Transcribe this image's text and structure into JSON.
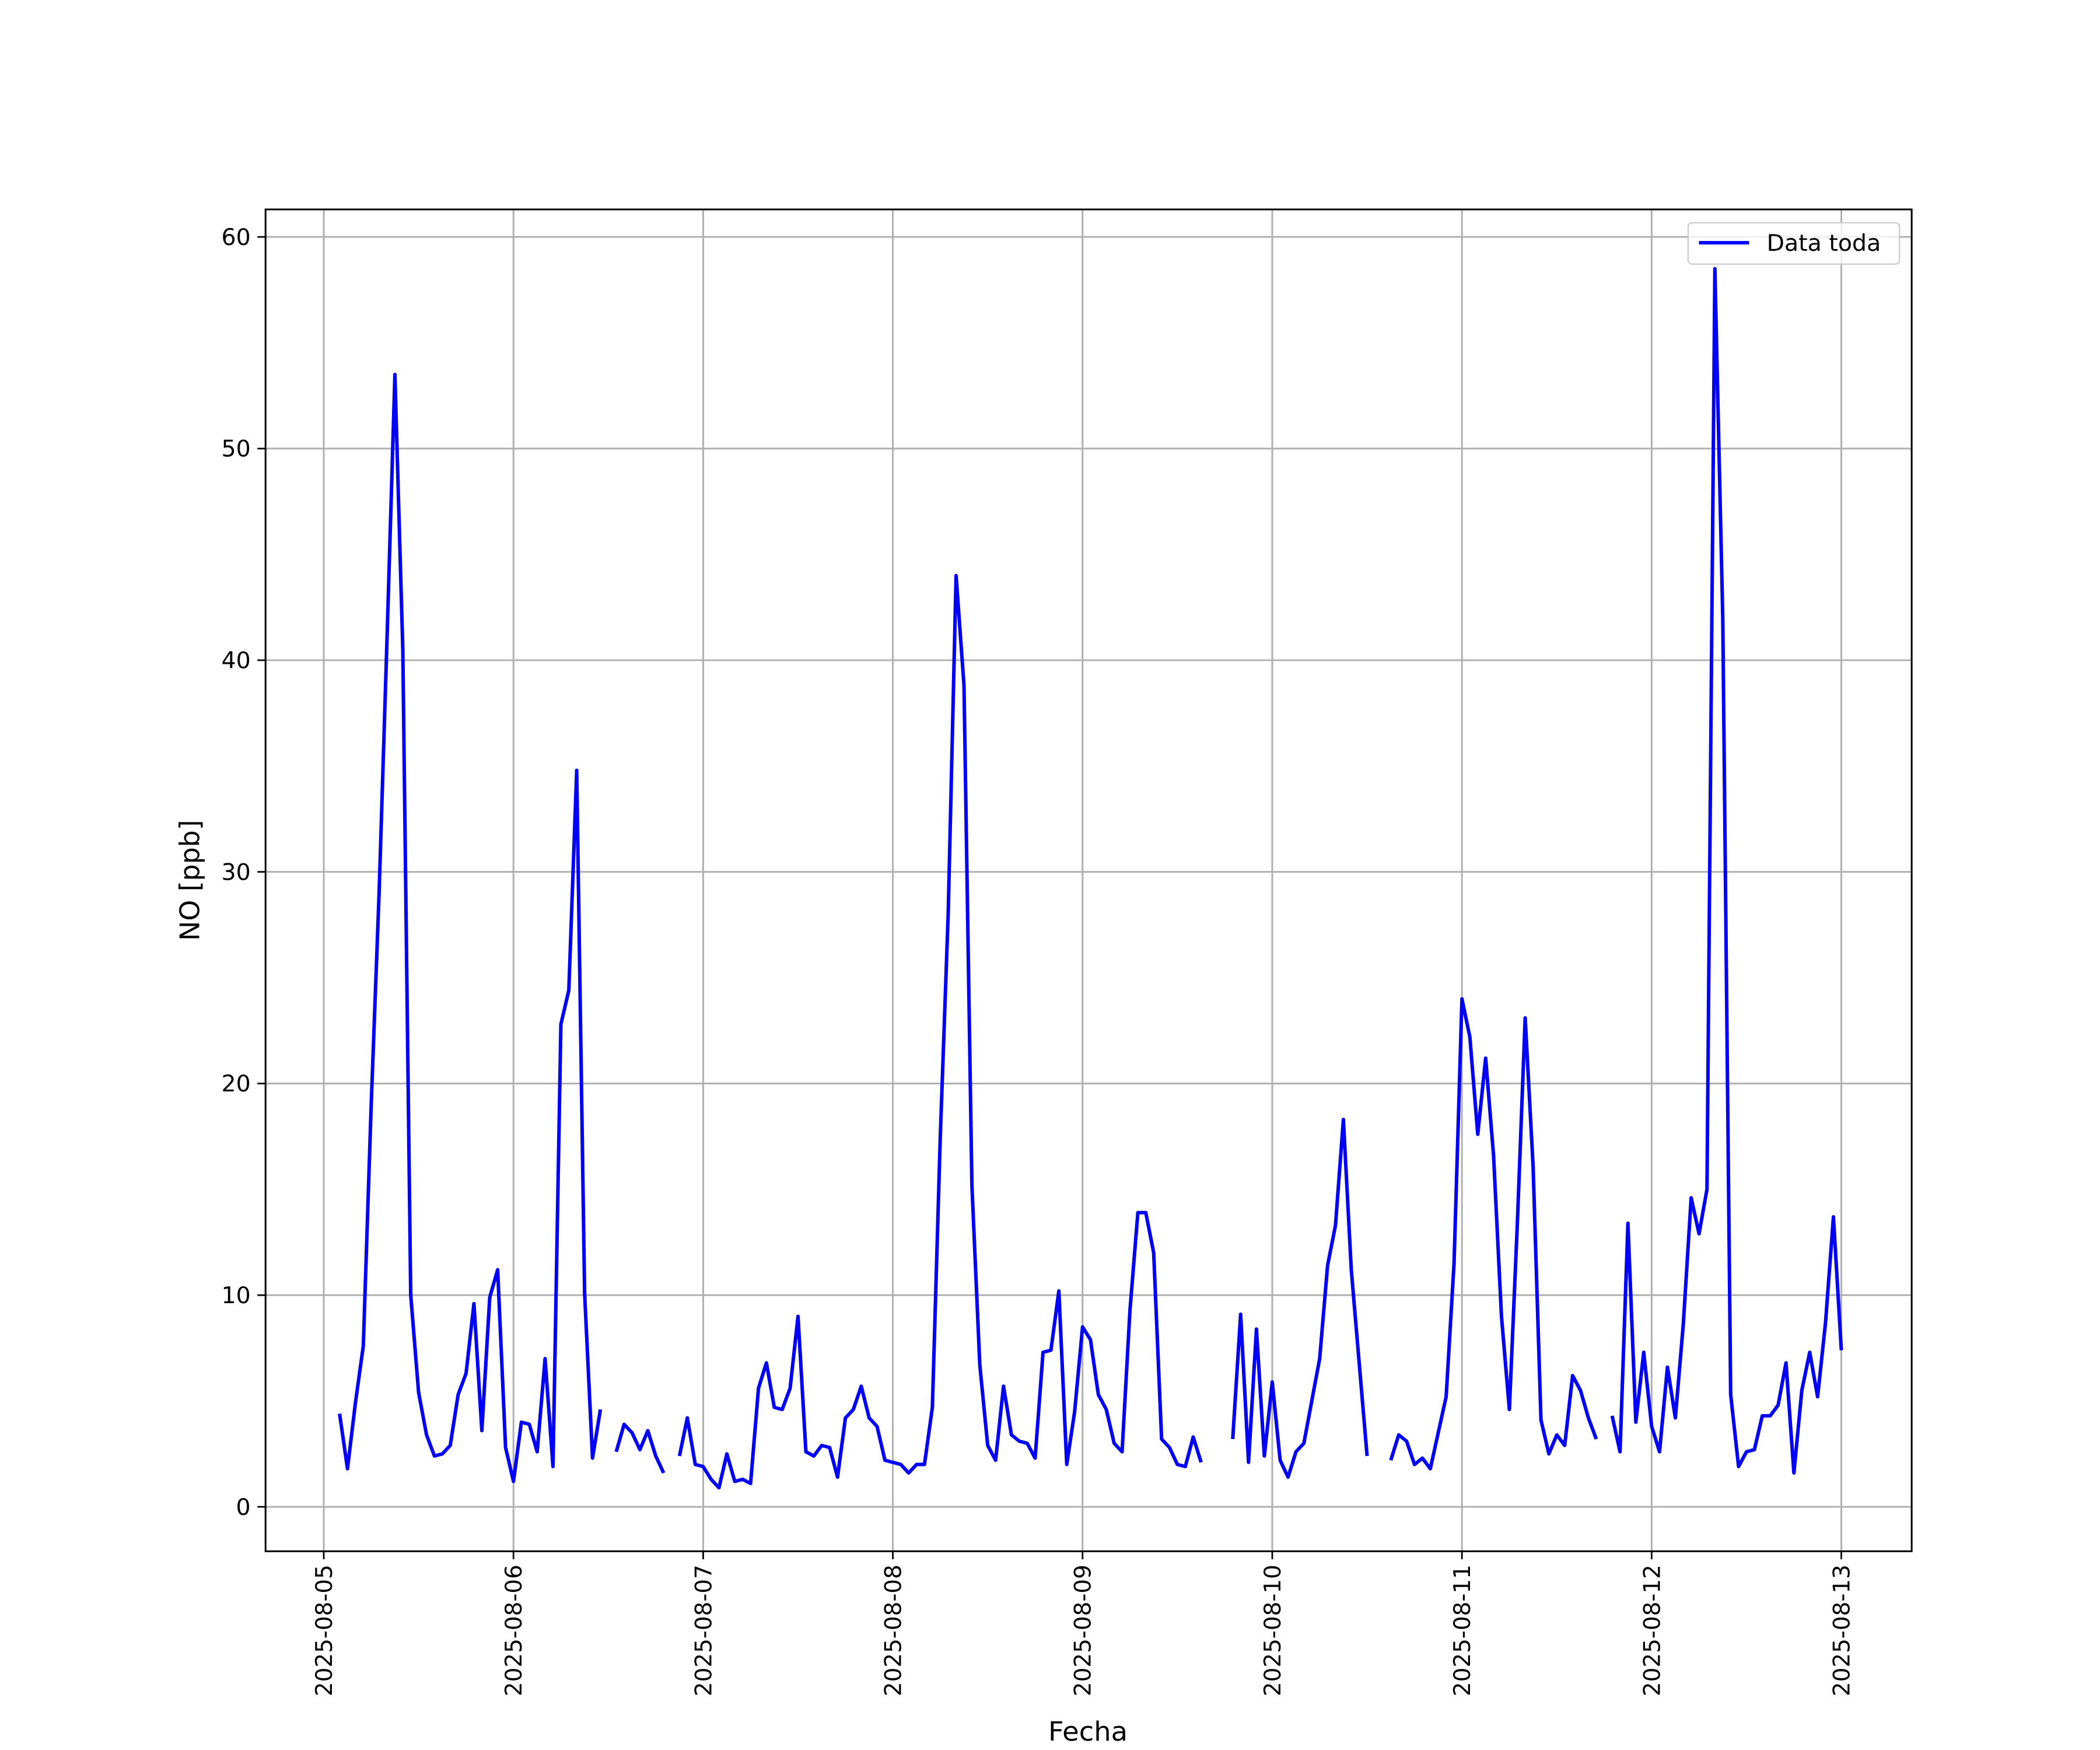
{
  "chart_data": {
    "type": "line",
    "xlabel": "Fecha",
    "ylabel": "NO [ppb]",
    "xlim": [
      "2025-08-04 16:38",
      "2025-08-13 08:54"
    ],
    "ylim": [
      -2.1,
      61.3
    ],
    "xticks": [
      "2025-08-05",
      "2025-08-06",
      "2025-08-07",
      "2025-08-08",
      "2025-08-09",
      "2025-08-10",
      "2025-08-11",
      "2025-08-12",
      "2025-08-13"
    ],
    "yticks": [
      0,
      10,
      20,
      30,
      40,
      50,
      60
    ],
    "grid": true,
    "legend": "upper right",
    "x": [
      "2025-08-05 02:00",
      "2025-08-05 03:00",
      "2025-08-05 04:00",
      "2025-08-05 05:00",
      "2025-08-05 06:00",
      "2025-08-05 07:00",
      "2025-08-05 08:00",
      "2025-08-05 09:00",
      "2025-08-05 10:00",
      "2025-08-05 11:00",
      "2025-08-05 12:00",
      "2025-08-05 13:00",
      "2025-08-05 14:00",
      "2025-08-05 15:00",
      "2025-08-05 16:00",
      "2025-08-05 17:00",
      "2025-08-05 18:00",
      "2025-08-05 19:00",
      "2025-08-05 20:00",
      "2025-08-05 21:00",
      "2025-08-05 22:00",
      "2025-08-05 23:00",
      "2025-08-06 00:00",
      "2025-08-06 01:00",
      "2025-08-06 02:00",
      "2025-08-06 03:00",
      "2025-08-06 04:00",
      "2025-08-06 05:00",
      "2025-08-06 06:00",
      "2025-08-06 07:00",
      "2025-08-06 08:00",
      "2025-08-06 09:00",
      "2025-08-06 10:00",
      "2025-08-06 11:00",
      "2025-08-06 12:00",
      "2025-08-06 13:00",
      "2025-08-06 14:00",
      "2025-08-06 15:00",
      "2025-08-06 16:00",
      "2025-08-06 17:00",
      "2025-08-06 18:00",
      "2025-08-06 19:00",
      "2025-08-06 20:00",
      "2025-08-06 21:00",
      "2025-08-06 22:00",
      "2025-08-06 23:00",
      "2025-08-07 00:00",
      "2025-08-07 01:00",
      "2025-08-07 02:00",
      "2025-08-07 03:00",
      "2025-08-07 04:00",
      "2025-08-07 05:00",
      "2025-08-07 06:00",
      "2025-08-07 07:00",
      "2025-08-07 08:00",
      "2025-08-07 09:00",
      "2025-08-07 10:00",
      "2025-08-07 11:00",
      "2025-08-07 12:00",
      "2025-08-07 13:00",
      "2025-08-07 14:00",
      "2025-08-07 15:00",
      "2025-08-07 16:00",
      "2025-08-07 17:00",
      "2025-08-07 18:00",
      "2025-08-07 19:00",
      "2025-08-07 20:00",
      "2025-08-07 21:00",
      "2025-08-07 22:00",
      "2025-08-07 23:00",
      "2025-08-08 00:00",
      "2025-08-08 01:00",
      "2025-08-08 02:00",
      "2025-08-08 03:00",
      "2025-08-08 04:00",
      "2025-08-08 05:00",
      "2025-08-08 06:00",
      "2025-08-08 07:00",
      "2025-08-08 08:00",
      "2025-08-08 09:00",
      "2025-08-08 10:00",
      "2025-08-08 11:00",
      "2025-08-08 12:00",
      "2025-08-08 13:00",
      "2025-08-08 14:00",
      "2025-08-08 15:00",
      "2025-08-08 16:00",
      "2025-08-08 17:00",
      "2025-08-08 18:00",
      "2025-08-08 19:00",
      "2025-08-08 20:00",
      "2025-08-08 21:00",
      "2025-08-08 22:00",
      "2025-08-08 23:00",
      "2025-08-09 00:00",
      "2025-08-09 01:00",
      "2025-08-09 02:00",
      "2025-08-09 03:00",
      "2025-08-09 04:00",
      "2025-08-09 05:00",
      "2025-08-09 06:00",
      "2025-08-09 07:00",
      "2025-08-09 08:00",
      "2025-08-09 09:00",
      "2025-08-09 10:00",
      "2025-08-09 11:00",
      "2025-08-09 12:00",
      "2025-08-09 13:00",
      "2025-08-09 14:00",
      "2025-08-09 15:00",
      "2025-08-09 16:00",
      "2025-08-09 17:00",
      "2025-08-09 18:00",
      "2025-08-09 19:00",
      "2025-08-09 20:00",
      "2025-08-09 21:00",
      "2025-08-09 22:00",
      "2025-08-09 23:00",
      "2025-08-10 00:00",
      "2025-08-10 01:00",
      "2025-08-10 02:00",
      "2025-08-10 03:00",
      "2025-08-10 04:00",
      "2025-08-10 05:00",
      "2025-08-10 06:00",
      "2025-08-10 07:00",
      "2025-08-10 08:00",
      "2025-08-10 09:00",
      "2025-08-10 10:00",
      "2025-08-10 11:00",
      "2025-08-10 12:00",
      "2025-08-10 13:00",
      "2025-08-10 14:00",
      "2025-08-10 15:00",
      "2025-08-10 16:00",
      "2025-08-10 17:00",
      "2025-08-10 18:00",
      "2025-08-10 19:00",
      "2025-08-10 20:00",
      "2025-08-10 21:00",
      "2025-08-10 22:00",
      "2025-08-10 23:00",
      "2025-08-11 00:00",
      "2025-08-11 01:00",
      "2025-08-11 02:00",
      "2025-08-11 03:00",
      "2025-08-11 04:00",
      "2025-08-11 05:00",
      "2025-08-11 06:00",
      "2025-08-11 07:00",
      "2025-08-11 08:00",
      "2025-08-11 09:00",
      "2025-08-11 10:00",
      "2025-08-11 11:00",
      "2025-08-11 12:00",
      "2025-08-11 13:00",
      "2025-08-11 14:00",
      "2025-08-11 15:00",
      "2025-08-11 16:00",
      "2025-08-11 17:00",
      "2025-08-11 18:00",
      "2025-08-11 19:00",
      "2025-08-11 20:00",
      "2025-08-11 21:00",
      "2025-08-11 22:00",
      "2025-08-11 23:00",
      "2025-08-12 00:00",
      "2025-08-12 01:00",
      "2025-08-12 02:00",
      "2025-08-12 03:00",
      "2025-08-12 04:00",
      "2025-08-12 05:00",
      "2025-08-12 06:00",
      "2025-08-12 07:00",
      "2025-08-12 08:00",
      "2025-08-12 09:00",
      "2025-08-12 10:00",
      "2025-08-12 11:00",
      "2025-08-12 12:00",
      "2025-08-12 13:00",
      "2025-08-12 14:00",
      "2025-08-12 15:00",
      "2025-08-12 16:00",
      "2025-08-12 17:00",
      "2025-08-12 18:00",
      "2025-08-12 19:00",
      "2025-08-12 20:00",
      "2025-08-12 21:00",
      "2025-08-12 22:00",
      "2025-08-12 23:00",
      "2025-08-13 00:00"
    ],
    "series": [
      {
        "name": "Data toda",
        "color": "#0000ff",
        "values": [
          4.4,
          1.8,
          4.9,
          7.6,
          19,
          29,
          41,
          53.5,
          40.5,
          10,
          5.4,
          3.4,
          2.4,
          2.5,
          2.9,
          5.3,
          6.3,
          9.6,
          3.6,
          9.9,
          11.2,
          2.8,
          1.2,
          4.0,
          3.9,
          2.6,
          7.0,
          1.9,
          22.8,
          24.4,
          34.8,
          10.1,
          2.3,
          4.6,
          null,
          2.6,
          3.9,
          3.5,
          2.7,
          3.6,
          2.4,
          1.6,
          null,
          2.4,
          4.2,
          2.0,
          1.9,
          1.3,
          0.9,
          2.5,
          1.2,
          1.3,
          1.1,
          5.6,
          6.8,
          4.7,
          4.6,
          5.6,
          9.0,
          2.6,
          2.4,
          2.9,
          2.8,
          1.4,
          4.2,
          4.6,
          5.7,
          4.2,
          3.8,
          2.2,
          2.1,
          2.0,
          1.6,
          2.0,
          2.0,
          4.7,
          17.5,
          28,
          44,
          38.8,
          15.2,
          6.7,
          2.9,
          2.2,
          5.7,
          3.4,
          3.1,
          3.0,
          2.3,
          7.3,
          7.4,
          10.2,
          2.0,
          4.5,
          8.5,
          7.9,
          5.3,
          4.6,
          3.0,
          2.6,
          9.3,
          13.9,
          13.9,
          12.0,
          3.2,
          2.8,
          2.0,
          1.9,
          3.3,
          2.1,
          null,
          null,
          null,
          3.2,
          9.1,
          2.1,
          8.4,
          2.4,
          5.9,
          2.2,
          1.4,
          2.6,
          3.0,
          5.0,
          7.0,
          11.4,
          13.3,
          18.3,
          11.2,
          6.8,
          2.4,
          null,
          null,
          2.2,
          3.4,
          3.1,
          2.0,
          2.3,
          1.8,
          3.5,
          5.2,
          11.5,
          24,
          22.2,
          17.6,
          21.2,
          16.6,
          9.0,
          4.6,
          13.3,
          23.1,
          16.1,
          4.1,
          2.5,
          3.4,
          2.9,
          6.2,
          5.5,
          4.2,
          3.2,
          null,
          4.3,
          2.6,
          13.4,
          4.0,
          7.3,
          3.8,
          2.6,
          6.6,
          4.2,
          8.6,
          14.6,
          12.9,
          15.0,
          58.5,
          42,
          5.3,
          1.9,
          2.6,
          2.7,
          4.3,
          4.3,
          4.8,
          6.8,
          1.6,
          5.5,
          7.3,
          5.2,
          8.7,
          13.7,
          7.4
        ]
      }
    ]
  }
}
